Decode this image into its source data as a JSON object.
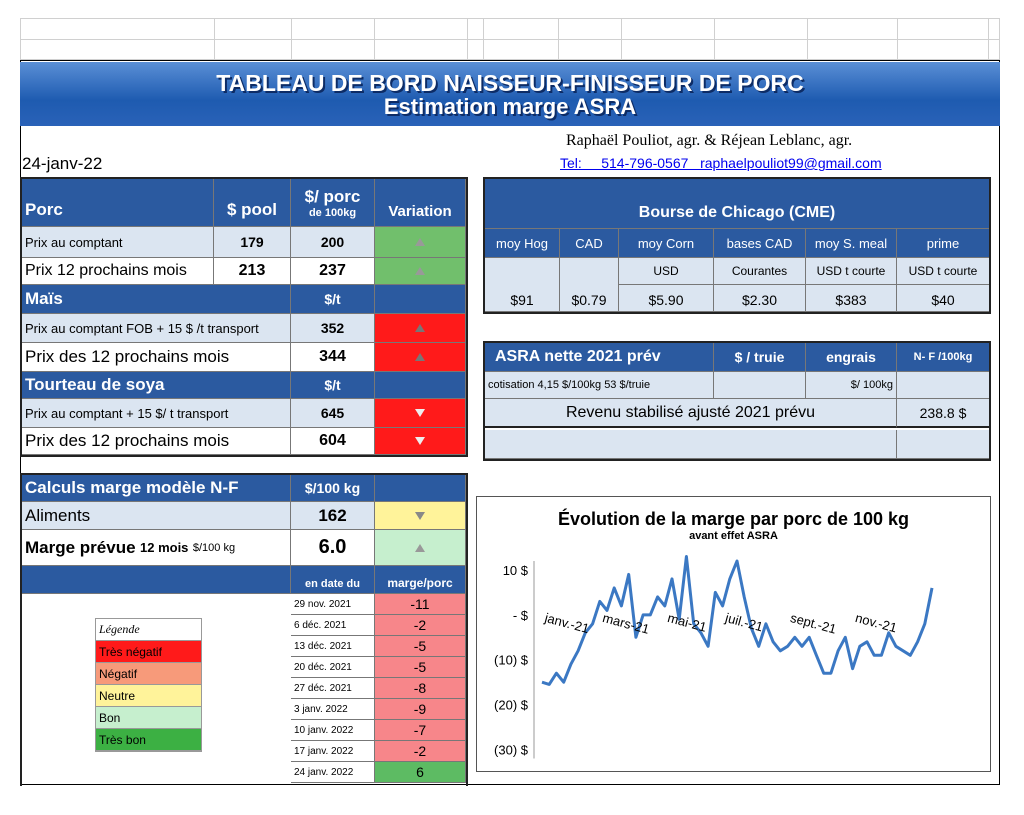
{
  "header": {
    "title": "TABLEAU  DE BORD NAISSEUR-FINISSEUR  DE PORC",
    "subtitle": "Estimation marge ASRA"
  },
  "date": "24-janv-22",
  "authors": "Raphaël Pouliot, agr.   &   Réjean Leblanc, agr.",
  "contact": "Tel:     514-796-0567   raphaelpouliot99@gmail.com",
  "porc": {
    "title": "Porc",
    "col_pool": "$ pool",
    "col_porc": "$/ porc",
    "col_porc_sub": "de 100kg",
    "col_var": "Variation",
    "rows": [
      {
        "label": "Prix au comptant",
        "pool": "179",
        "porc": "200"
      },
      {
        "label": "Prix 12 prochains mois",
        "pool": "213",
        "porc": "237"
      }
    ]
  },
  "mais": {
    "title": "Maïs",
    "unit": "$/t",
    "rows": [
      {
        "label": "Prix au comptant  FOB + 15 $ /t transport",
        "value": "352"
      },
      {
        "label": "Prix des 12 prochains mois",
        "value": "344"
      }
    ]
  },
  "soya": {
    "title": "Tourteau de soya",
    "unit": "$/t",
    "rows": [
      {
        "label": "Prix au comptant  + 15 $/ t  transport",
        "value": "645"
      },
      {
        "label": "Prix des 12 prochains mois",
        "value": "604"
      }
    ]
  },
  "marge": {
    "title": "Calculs marge  modèle N-F",
    "unit": "$/100 kg",
    "aliments_label": "Aliments",
    "aliments_value": "162",
    "prevue_label": "Marge prévue",
    "prevue_sub": "12 mois",
    "prevue_unit": "$/100 kg",
    "prevue_value": "6.0",
    "col_date": "en date du",
    "col_marge": "marge/porc",
    "history": [
      {
        "date": "29 nov. 2021",
        "value": "-11"
      },
      {
        "date": "6 déc. 2021",
        "value": "-2"
      },
      {
        "date": "13 déc. 2021",
        "value": "-5"
      },
      {
        "date": "20 déc. 2021",
        "value": "-5"
      },
      {
        "date": "27 déc. 2021",
        "value": "-8"
      },
      {
        "date": "3 janv. 2022",
        "value": "-9"
      },
      {
        "date": "10 janv. 2022",
        "value": "-7"
      },
      {
        "date": "17 janv. 2022",
        "value": "-2"
      },
      {
        "date": "24 janv. 2022",
        "value": "6"
      }
    ]
  },
  "legend": {
    "title": "Légende",
    "items": [
      {
        "label": "Très négatif",
        "color": "#ff1a1a"
      },
      {
        "label": "Négatif",
        "color": "#f79a7a"
      },
      {
        "label": "Neutre",
        "color": "#fff39a"
      },
      {
        "label": "Bon",
        "color": "#c6efce"
      },
      {
        "label": "Très bon",
        "color": "#3cb043"
      }
    ]
  },
  "chicago": {
    "title": "Bourse de Chicago (CME)",
    "cols": [
      "moy Hog",
      "CAD",
      "moy Corn",
      "bases CAD",
      "moy S. meal",
      "prime"
    ],
    "sub": [
      "",
      "",
      "USD",
      "Courantes",
      "USD t courte",
      "USD t courte"
    ],
    "values": [
      "$91",
      "$0.79",
      "$5.90",
      "$2.30",
      "$383",
      "$40"
    ]
  },
  "asra": {
    "title": "ASRA nette 2021 prév",
    "col_truie": "$ / truie",
    "col_engrais": "engrais",
    "col_nf": "N- F /100kg",
    "cotisation": "cotisation 4,15 $/100kg  53 $/truie",
    "engrais_unit": "$/ 100kg",
    "revenu_label": "Revenu stabilisé ajusté 2021 prévu",
    "revenu_value": "238.8 $"
  },
  "chart_data": {
    "type": "line",
    "title": "Évolution de la marge par porc de 100 kg",
    "subtitle": "avant effet ASRA",
    "ylim": [
      -33,
      14
    ],
    "yticks": [
      {
        "value": 10,
        "label": "10 $"
      },
      {
        "value": 0,
        "label": "-  $"
      },
      {
        "value": -10,
        "label": "(10) $"
      },
      {
        "value": -20,
        "label": "(20) $"
      },
      {
        "value": -30,
        "label": "(30) $"
      }
    ],
    "xlabels": [
      {
        "index": 0,
        "label": "janv.-21"
      },
      {
        "index": 8,
        "label": "mars-21"
      },
      {
        "index": 17,
        "label": "mai-21"
      },
      {
        "index": 25,
        "label": "juil.-21"
      },
      {
        "index": 34,
        "label": "sept.-21"
      },
      {
        "index": 43,
        "label": "nov.-21"
      }
    ],
    "color": "#3b78c3",
    "values": [
      -15,
      -15.5,
      -13,
      -15,
      -11,
      -8,
      -4,
      -2,
      3,
      1,
      6,
      2,
      9,
      -5,
      0,
      0,
      4,
      2,
      8,
      -1,
      13,
      -2,
      -4,
      -7,
      5,
      2,
      8,
      12,
      4,
      -3,
      -7,
      -2,
      -6,
      -8,
      -7,
      -5,
      -7,
      -5,
      -9,
      -13,
      -13,
      -8,
      -5,
      -12,
      -7,
      -6,
      -9,
      -9,
      -4,
      -7,
      -8,
      -9,
      -6,
      -2,
      6
    ]
  }
}
